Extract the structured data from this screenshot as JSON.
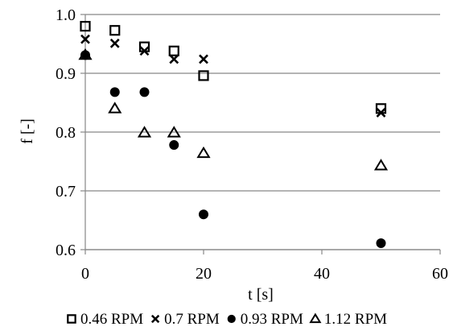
{
  "chart_data": {
    "type": "scatter",
    "title": "",
    "xlabel": "t [s]",
    "ylabel": "f [-]",
    "xlim": [
      0,
      60
    ],
    "ylim": [
      0.6,
      1.0
    ],
    "x_ticks": [
      0,
      20,
      40,
      60
    ],
    "y_ticks": [
      0.6,
      0.7,
      0.8,
      0.9,
      1.0
    ],
    "x_tick_labels": [
      "0",
      "20",
      "40",
      "60"
    ],
    "y_tick_labels": [
      "0.6",
      "0.7",
      "0.8",
      "0.9",
      "1.0"
    ],
    "grid": "horizontal",
    "legend_position": "bottom",
    "series": [
      {
        "name": "0.46 RPM",
        "marker": "square-open",
        "x": [
          0,
          5,
          10,
          15,
          20,
          50
        ],
        "y": [
          0.98,
          0.973,
          0.945,
          0.938,
          0.896,
          0.84
        ]
      },
      {
        "name": "0.7 RPM",
        "marker": "x",
        "x": [
          0,
          5,
          10,
          15,
          20,
          50
        ],
        "y": [
          0.958,
          0.951,
          0.938,
          0.924,
          0.924,
          0.833
        ]
      },
      {
        "name": "0.93 RPM",
        "marker": "circle-filled",
        "x": [
          0,
          5,
          10,
          15,
          20,
          50
        ],
        "y": [
          0.931,
          0.868,
          0.868,
          0.778,
          0.66,
          0.611
        ]
      },
      {
        "name": "1.12 RPM",
        "marker": "triangle-open",
        "x": [
          0,
          5,
          10,
          15,
          20,
          50
        ],
        "y": [
          0.931,
          0.84,
          0.799,
          0.799,
          0.764,
          0.743
        ]
      }
    ]
  }
}
